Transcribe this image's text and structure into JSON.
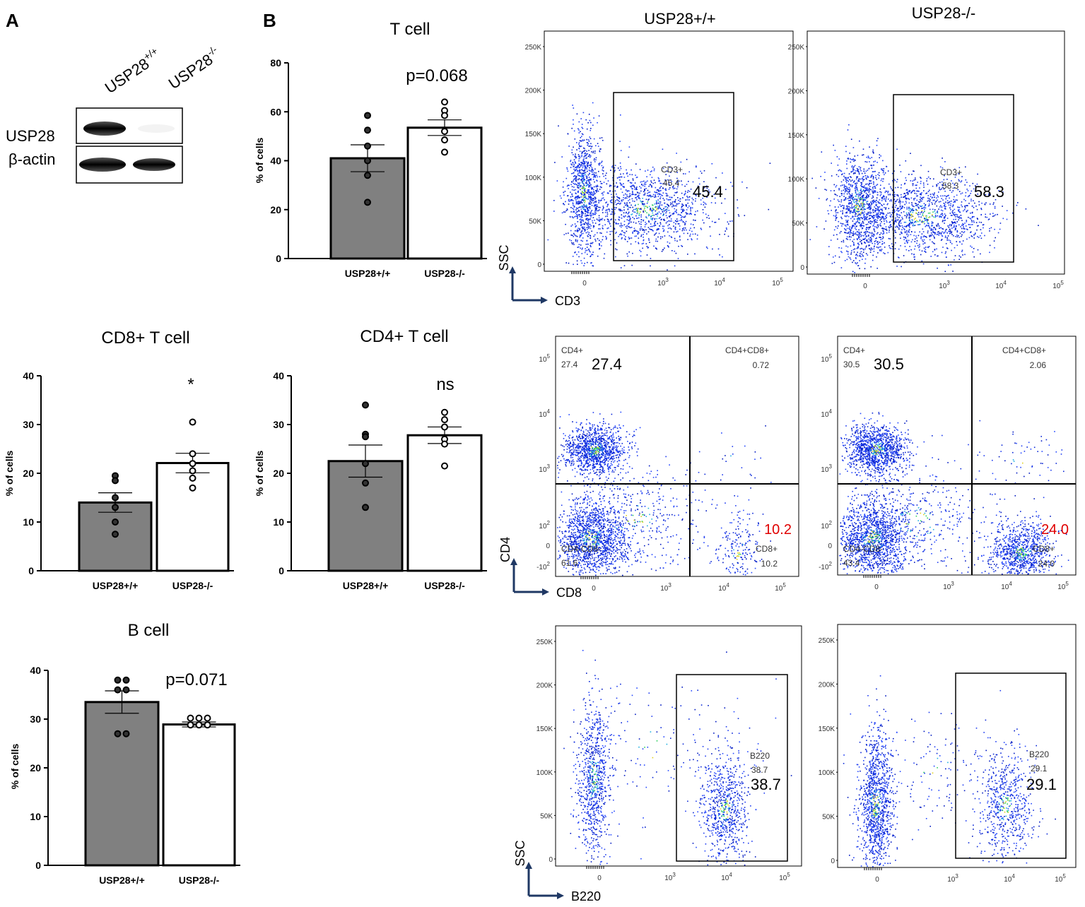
{
  "colors": {
    "wt_bar": "#808080",
    "ko_bar": "#ffffff",
    "red_value": "#e00000",
    "arrow": "#1f3864",
    "dot_blue": "#0a28d8"
  },
  "panel_labels": {
    "a": "A",
    "b": "B"
  },
  "western_blot": {
    "lanes": [
      "USP28+/+",
      "USP28-/-"
    ],
    "lane_base": [
      "USP28",
      "USP28"
    ],
    "lane_sup": [
      "+/+",
      "-/-"
    ],
    "rows": [
      "USP28",
      "β-actin"
    ]
  },
  "chart_data": [
    {
      "id": "tcell",
      "type": "bar",
      "title": "T cell",
      "annotation": "p=0.068",
      "categories": [
        "USP28+/+",
        "USP28-/-"
      ],
      "values": [
        41,
        53.5
      ],
      "sem": [
        5.5,
        3.2
      ],
      "points": [
        [
          58.5,
          52.5,
          46,
          40,
          34,
          23
        ],
        [
          64,
          60.5,
          58.5,
          52,
          48.5,
          43.5
        ]
      ],
      "ylabel": "% of cells",
      "ylim": [
        0,
        80
      ],
      "yticks": [
        0,
        20,
        40,
        60,
        80
      ]
    },
    {
      "id": "cd8",
      "type": "bar",
      "title": "CD8+ T cell",
      "annotation": "*",
      "categories": [
        "USP28+/+",
        "USP28-/-"
      ],
      "values": [
        14,
        22.1
      ],
      "sem": [
        2,
        2
      ],
      "points": [
        [
          19.5,
          18.5,
          15,
          13,
          10,
          7.5
        ],
        [
          30.5,
          24,
          22,
          20.5,
          19,
          17
        ]
      ],
      "ylabel": "% of cells",
      "ylim": [
        0,
        40
      ],
      "yticks": [
        0,
        10,
        20,
        30,
        40
      ]
    },
    {
      "id": "cd4",
      "type": "bar",
      "title": "CD4+ T cell",
      "annotation": "ns",
      "categories": [
        "USP28+/+",
        "USP28-/-"
      ],
      "values": [
        22.5,
        27.8
      ],
      "sem": [
        3.3,
        1.7
      ],
      "points": [
        [
          34,
          28,
          27.5,
          22,
          18,
          13
        ],
        [
          32.5,
          31,
          29.5,
          27,
          26,
          21.5
        ]
      ],
      "ylabel": "% of cells",
      "ylim": [
        0,
        40
      ],
      "yticks": [
        0,
        10,
        20,
        30,
        40
      ]
    },
    {
      "id": "bcell",
      "type": "bar",
      "title": "B cell",
      "annotation": "p=0.071",
      "categories": [
        "USP28+/+",
        "USP28-/-"
      ],
      "values": [
        33.5,
        28.9
      ],
      "sem": [
        2.3,
        0.5
      ],
      "points": [
        [
          38,
          38,
          36,
          36,
          27,
          27
        ],
        [
          30.2,
          30.2,
          30.2,
          28.8,
          28.8,
          28.8
        ]
      ],
      "ylabel": "% of cells",
      "ylim": [
        0,
        40
      ],
      "yticks": [
        0,
        10,
        20,
        30,
        40
      ]
    }
  ],
  "flow": {
    "column_titles": [
      "USP28+/+",
      "USP28-/-"
    ],
    "ssc_ticks": [
      "250K",
      "200K",
      "150K",
      "100K",
      "50K",
      "0"
    ],
    "log_ticks": [
      "0",
      "10",
      "10",
      "10",
      "10"
    ],
    "log_exps": [
      "",
      "3",
      "4",
      "5"
    ],
    "cd4_ticks": [
      "10",
      "10",
      "10",
      "10",
      "0",
      "-10"
    ],
    "cd4_exps": [
      "5",
      "4",
      "3",
      "2",
      "",
      "2"
    ],
    "axes": {
      "cd3_y": "SSC",
      "cd3_x": "CD3",
      "q_y": "CD4",
      "q_x": "CD8",
      "b_y": "SSC",
      "b_x": "B220"
    },
    "cd3": [
      {
        "gate_name": "CD3+",
        "gate_value": "45.4",
        "big_value": "45.4"
      },
      {
        "gate_name": "CD3+",
        "gate_value": "58.3",
        "big_value": "58.3"
      }
    ],
    "quad": [
      {
        "cd4_name": "CD4+",
        "cd4_value": "27.4",
        "cd4_big": "27.4",
        "dp_name": "CD4+CD8+",
        "dp_value": "0.72",
        "dn_name": "CD4-CD8-",
        "dn_value": "61.6",
        "cd8_name": "CD8+",
        "cd8_value": "10.2",
        "cd8_big": "10.2"
      },
      {
        "cd4_name": "CD4+",
        "cd4_value": "30.5",
        "cd4_big": "30.5",
        "dp_name": "CD4+CD8+",
        "dp_value": "2.06",
        "dn_name": "CD4-CD8-",
        "dn_value": "43.4",
        "cd8_name": "CD8+",
        "cd8_value": "24.0",
        "cd8_big": "24.0"
      }
    ],
    "b220": [
      {
        "gate_name": "B220",
        "gate_value": "38.7",
        "big_value": "38.7"
      },
      {
        "gate_name": "B220",
        "gate_value": "29.1",
        "big_value": "29.1"
      }
    ]
  }
}
